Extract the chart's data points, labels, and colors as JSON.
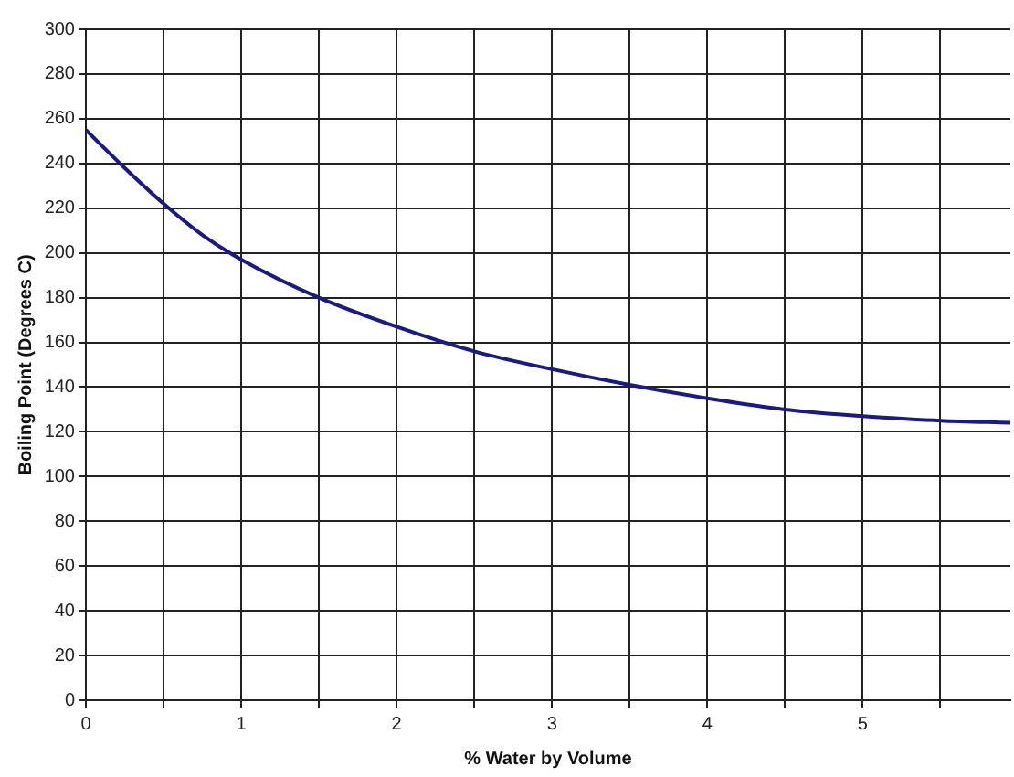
{
  "chart_data": {
    "type": "line",
    "xlabel": "% Water by Volume",
    "ylabel": "Boiling Point (Degrees C)",
    "x": [
      0,
      0.25,
      0.5,
      0.75,
      1,
      1.5,
      2,
      2.5,
      3,
      3.5,
      4,
      4.5,
      5,
      5.5,
      5.95
    ],
    "series": [
      {
        "color": "#1a1a80",
        "values": [
          255,
          238,
          222,
          208,
          197,
          180,
          167,
          156,
          148,
          141,
          135,
          130,
          127,
          125,
          124
        ]
      }
    ],
    "xlim": [
      0,
      5.95
    ],
    "xticks": [
      0,
      {
        "value": 0.5,
        "label": null
      },
      1,
      {
        "value": 1.5,
        "label": null
      },
      2,
      {
        "value": 2.5,
        "label": null
      },
      3,
      {
        "value": 3.5,
        "label": null
      },
      4,
      {
        "value": 4.5,
        "label": null
      },
      5,
      {
        "value": 5.5,
        "label": null
      }
    ],
    "ylim": [
      0,
      300
    ],
    "yticks": [
      0,
      20,
      40,
      60,
      80,
      100,
      120,
      140,
      160,
      180,
      200,
      220,
      240,
      260,
      280,
      300
    ],
    "grid": true,
    "legend": false,
    "marker": "none",
    "line_style": "solid"
  }
}
